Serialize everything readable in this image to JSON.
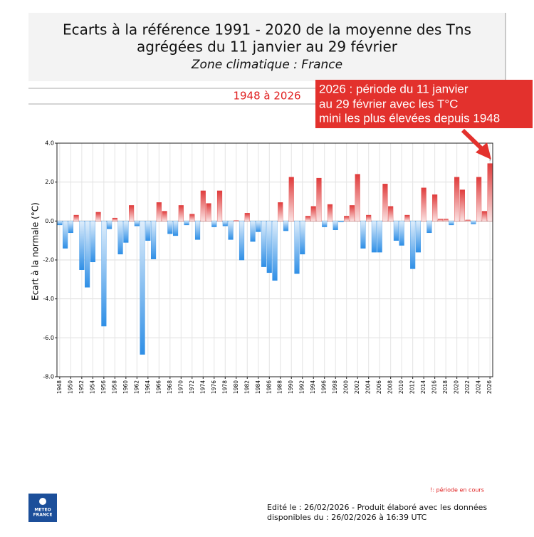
{
  "chart_data": {
    "type": "bar",
    "title": [
      "Ecarts à la référence 1991 - 2020 de la moyenne des Tns",
      "agrégées du 11 janvier au 29 février"
    ],
    "subtitle": "Zone climatique : France",
    "period": "1948 à 2026",
    "annotation": [
      "2026 : période du 11 janvier",
      "au 29 février avec les T°C",
      "mini les plus élevées depuis 1948"
    ],
    "current_marker": "!",
    "footnote": "!: période en cours",
    "footer": [
      "Edité le : 26/02/2026 - Produit élaboré avec les données",
      "disponibles du : 26/02/2026 à 16:39 UTC"
    ],
    "logo": [
      "METEO",
      "FRANCE"
    ],
    "y_label": "Ecart à la normale (°C)",
    "categories": [
      "1948",
      null,
      "1950",
      null,
      "1952",
      null,
      "1954",
      null,
      "1956",
      null,
      "1958",
      null,
      "1960",
      null,
      "1962",
      null,
      "1964",
      null,
      "1966",
      null,
      "1968",
      null,
      "1970",
      null,
      "1972",
      null,
      "1974",
      null,
      "1976",
      null,
      "1978",
      null,
      "1980",
      null,
      "1982",
      null,
      "1984",
      null,
      "1986",
      null,
      "1988",
      null,
      "1990",
      null,
      "1992",
      null,
      "1994",
      null,
      "1996",
      null,
      "1998",
      null,
      "2000",
      null,
      "2002",
      null,
      "2004",
      null,
      "2006",
      null,
      "2008",
      null,
      "2010",
      null,
      "2012",
      null,
      "2014",
      null,
      "2016",
      null,
      "2018",
      null,
      "2020",
      null,
      "2022",
      null,
      "2024",
      null,
      "2026"
    ],
    "values": [
      -0.2,
      -1.4,
      -0.6,
      0.3,
      -2.5,
      -3.4,
      -2.1,
      0.45,
      -5.4,
      -0.4,
      0.15,
      -1.7,
      -1.1,
      0.8,
      -0.25,
      -6.85,
      -1.0,
      -1.95,
      0.95,
      0.5,
      -0.65,
      -0.75,
      0.8,
      -0.2,
      0.35,
      -0.95,
      1.55,
      0.9,
      -0.3,
      1.55,
      -0.25,
      -0.95,
      0.02,
      -2.0,
      0.4,
      -1.05,
      -0.55,
      -2.35,
      -2.65,
      -3.05,
      0.95,
      -0.5,
      2.25,
      -2.7,
      -1.7,
      0.25,
      0.75,
      2.2,
      -0.3,
      0.85,
      -0.45,
      -0.05,
      0.25,
      0.8,
      2.4,
      -1.4,
      0.3,
      -1.6,
      -1.6,
      1.9,
      0.75,
      -1.0,
      -1.25,
      0.3,
      -2.45,
      -1.6,
      1.7,
      -0.6,
      1.35,
      0.1,
      0.1,
      -0.2,
      2.25,
      1.6,
      0.05,
      -0.15,
      2.25,
      0.5,
      2.95
    ],
    "positive_color": "#e03c3c",
    "negative_color": "#2f8fe6",
    "ylim": [
      -8,
      4
    ],
    "yticks": [
      {
        "value": -8,
        "label": "-8.0"
      },
      {
        "value": -6,
        "label": "-6.0"
      },
      {
        "value": -4,
        "label": "-4.0"
      },
      {
        "value": -2,
        "label": "-2.0"
      },
      {
        "value": 0,
        "label": "0.0"
      },
      {
        "value": 2,
        "label": "2.0"
      },
      {
        "value": 4,
        "label": "4.0"
      }
    ],
    "grid": true
  }
}
